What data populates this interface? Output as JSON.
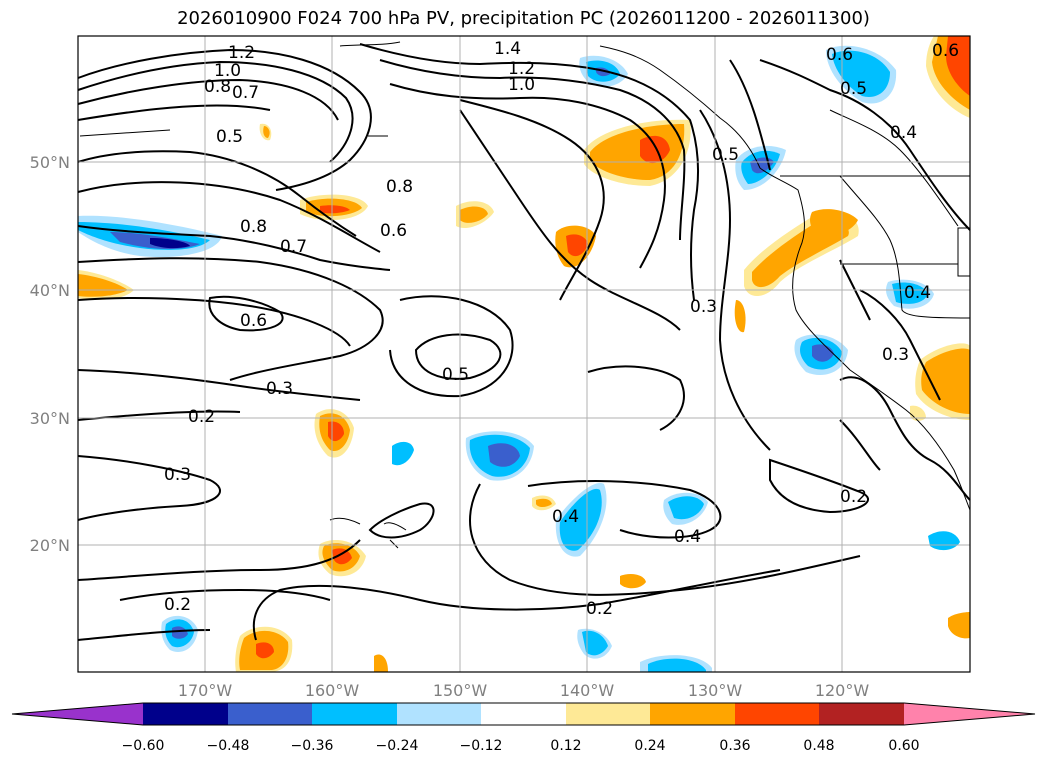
{
  "title": "2026010900 F024 700 hPa PV, precipitation PC (2026011200 - 2026011300)",
  "axes": {
    "lon_labels": [
      "170°W",
      "160°W",
      "150°W",
      "140°W",
      "130°W",
      "120°W"
    ],
    "lat_labels": [
      "50°N",
      "40°N",
      "30°N",
      "20°N"
    ]
  },
  "contour_labels": [
    "1.2",
    "1.4",
    "1.2",
    "1.0",
    "1.0",
    "0.8",
    "0.7",
    "0.5",
    "0.6",
    "0.5",
    "0.8",
    "0.8",
    "0.6",
    "0.7",
    "0.6",
    "0.5",
    "0.3",
    "0.2",
    "0.3",
    "0.3",
    "0.5",
    "0.4",
    "0.4",
    "0.2",
    "0.2",
    "0.2",
    "0.4",
    "0.4",
    "0.3",
    "0.6"
  ],
  "colorbar": {
    "ticks": [
      "−0.60",
      "−0.48",
      "−0.36",
      "−0.24",
      "−0.12",
      "0.12",
      "0.24",
      "0.36",
      "0.48",
      "0.60"
    ],
    "colors": [
      "#9932cc",
      "#00008b",
      "#3a5fcd",
      "#00bfff",
      "#b0e2ff",
      "#ffffff",
      "#fee996",
      "#ffa500",
      "#ff4500",
      "#b22222",
      "#ff82ab"
    ]
  },
  "colors": {
    "grid": "#b0b0b0",
    "contour": "#000000",
    "tick_text": "#808080"
  }
}
